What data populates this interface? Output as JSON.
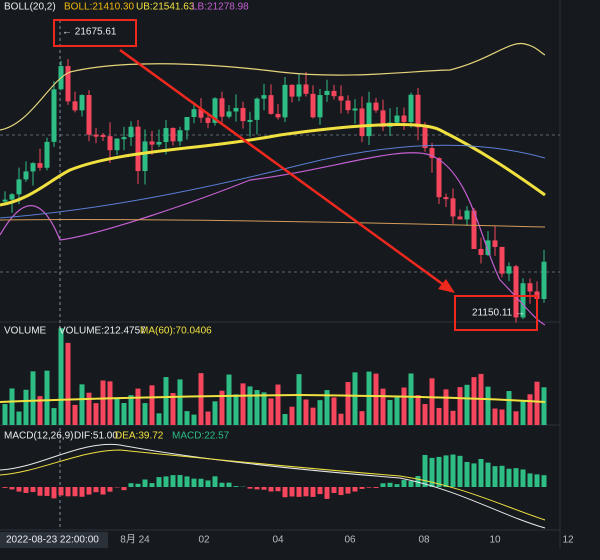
{
  "header": {
    "indicator": "BOLL(20,2)",
    "boll": "BOLL:21410.30",
    "ub": "UB:21541.63",
    "lb": "LB:21278.98"
  },
  "annotations": {
    "high": "← 21675.61",
    "low": "21150.11 →"
  },
  "volume": {
    "title": "VOLUME",
    "value": "VOLUME:212.4757",
    "ma": "MA(60):70.0406"
  },
  "macd": {
    "title": "MACD(12,26,9)",
    "dif": "DIF:51.00",
    "dea": "DEA:39.72",
    "macd": "MACD:22.57"
  },
  "xaxis": {
    "cursor": "2022-08-23 22:00:00",
    "labels": [
      "8月 24",
      "02",
      "04",
      "06",
      "08",
      "10",
      "12"
    ]
  }
}
